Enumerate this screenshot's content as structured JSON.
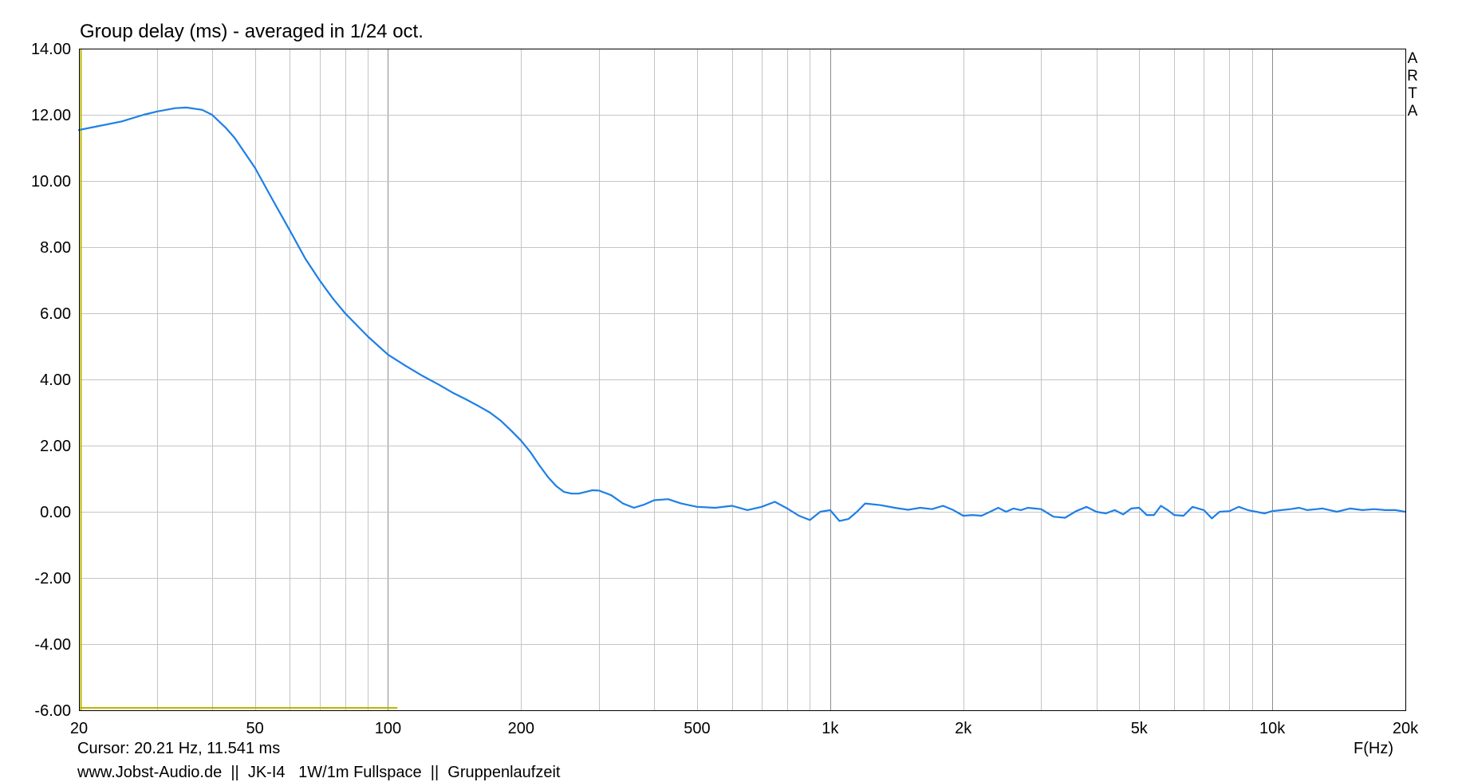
{
  "chart_data": {
    "type": "line",
    "title": "Group delay (ms) - averaged in 1/24 oct.",
    "xlabel": "F(Hz)",
    "ylabel": "",
    "x_scale": "log",
    "xlim": [
      20,
      20000
    ],
    "ylim": [
      -6,
      14
    ],
    "x_ticks": [
      {
        "value": 20,
        "label": "20"
      },
      {
        "value": 50,
        "label": "50"
      },
      {
        "value": 100,
        "label": "100"
      },
      {
        "value": 200,
        "label": "200"
      },
      {
        "value": 500,
        "label": "500"
      },
      {
        "value": 1000,
        "label": "1k"
      },
      {
        "value": 2000,
        "label": "2k"
      },
      {
        "value": 5000,
        "label": "5k"
      },
      {
        "value": 10000,
        "label": "10k"
      },
      {
        "value": 20000,
        "label": "20k"
      }
    ],
    "y_ticks": [
      {
        "value": 14,
        "label": "14.00"
      },
      {
        "value": 12,
        "label": "12.00"
      },
      {
        "value": 10,
        "label": "10.00"
      },
      {
        "value": 8,
        "label": "8.00"
      },
      {
        "value": 6,
        "label": "6.00"
      },
      {
        "value": 4,
        "label": "4.00"
      },
      {
        "value": 2,
        "label": "2.00"
      },
      {
        "value": 0,
        "label": "0.00"
      },
      {
        "value": -2,
        "label": "-2.00"
      },
      {
        "value": -4,
        "label": "-4.00"
      },
      {
        "value": -6,
        "label": "-6.00"
      }
    ],
    "grid": true,
    "series": [
      {
        "color": "#1f7fe6",
        "x": [
          20,
          22,
          25,
          28,
          30,
          33,
          35,
          38,
          40,
          43,
          45,
          50,
          55,
          60,
          65,
          70,
          75,
          80,
          90,
          100,
          110,
          120,
          130,
          140,
          150,
          160,
          170,
          180,
          190,
          200,
          210,
          220,
          230,
          240,
          250,
          260,
          270,
          280,
          290,
          300,
          320,
          340,
          360,
          380,
          400,
          430,
          460,
          500,
          550,
          600,
          650,
          700,
          750,
          800,
          850,
          900,
          950,
          1000,
          1050,
          1100,
          1150,
          1200,
          1300,
          1400,
          1500,
          1600,
          1700,
          1800,
          1900,
          2000,
          2100,
          2200,
          2300,
          2400,
          2500,
          2600,
          2700,
          2800,
          2900,
          3000,
          3200,
          3400,
          3600,
          3800,
          4000,
          4200,
          4400,
          4600,
          4800,
          5000,
          5200,
          5400,
          5600,
          5800,
          6000,
          6300,
          6600,
          7000,
          7300,
          7600,
          8000,
          8400,
          8800,
          9200,
          9600,
          10000,
          10500,
          11000,
          11500,
          12000,
          13000,
          14000,
          15000,
          16000,
          17000,
          18000,
          19000,
          20000
        ],
        "values": [
          11.54,
          11.65,
          11.8,
          12.0,
          12.1,
          12.2,
          12.22,
          12.15,
          12.0,
          11.6,
          11.3,
          10.4,
          9.4,
          8.5,
          7.65,
          7.0,
          6.45,
          6.0,
          5.3,
          4.75,
          4.4,
          4.1,
          3.85,
          3.6,
          3.4,
          3.2,
          3.0,
          2.75,
          2.45,
          2.15,
          1.8,
          1.4,
          1.05,
          0.78,
          0.6,
          0.55,
          0.55,
          0.6,
          0.65,
          0.64,
          0.5,
          0.25,
          0.12,
          0.22,
          0.35,
          0.38,
          0.25,
          0.15,
          0.12,
          0.18,
          0.05,
          0.15,
          0.3,
          0.1,
          -0.12,
          -0.25,
          0.0,
          0.05,
          -0.28,
          -0.22,
          0.0,
          0.25,
          0.2,
          0.12,
          0.06,
          0.12,
          0.08,
          0.18,
          0.05,
          -0.12,
          -0.1,
          -0.12,
          0.0,
          0.12,
          0.0,
          0.1,
          0.05,
          0.12,
          0.1,
          0.08,
          -0.15,
          -0.18,
          0.02,
          0.15,
          0.0,
          -0.05,
          0.05,
          -0.08,
          0.1,
          0.12,
          -0.1,
          -0.1,
          0.18,
          0.05,
          -0.1,
          -0.12,
          0.15,
          0.05,
          -0.2,
          0.0,
          0.02,
          0.15,
          0.05,
          0.0,
          -0.05,
          0.02,
          0.05,
          0.08,
          0.12,
          0.05,
          0.1,
          0.0,
          0.1,
          0.05,
          0.08,
          0.05,
          0.05,
          0.0
        ]
      }
    ]
  },
  "header": {
    "title": "Group delay (ms) - averaged in 1/24 oct.",
    "brand_vertical": [
      "A",
      "R",
      "T",
      "A"
    ]
  },
  "footer": {
    "cursor": "Cursor: 20.21 Hz, 11.541 ms",
    "info": "www.Jobst-Audio.de  ||  JK-I4   1W/1m Fullspace  ||  Gruppenlaufzeit",
    "x_unit": "F(Hz)"
  },
  "colors": {
    "curve": "#1f7fe6",
    "grid_minor": "#c4c4c4",
    "grid_major": "#8c8c8c",
    "cursor_marker": "#b8b800",
    "frame": "#000000"
  }
}
